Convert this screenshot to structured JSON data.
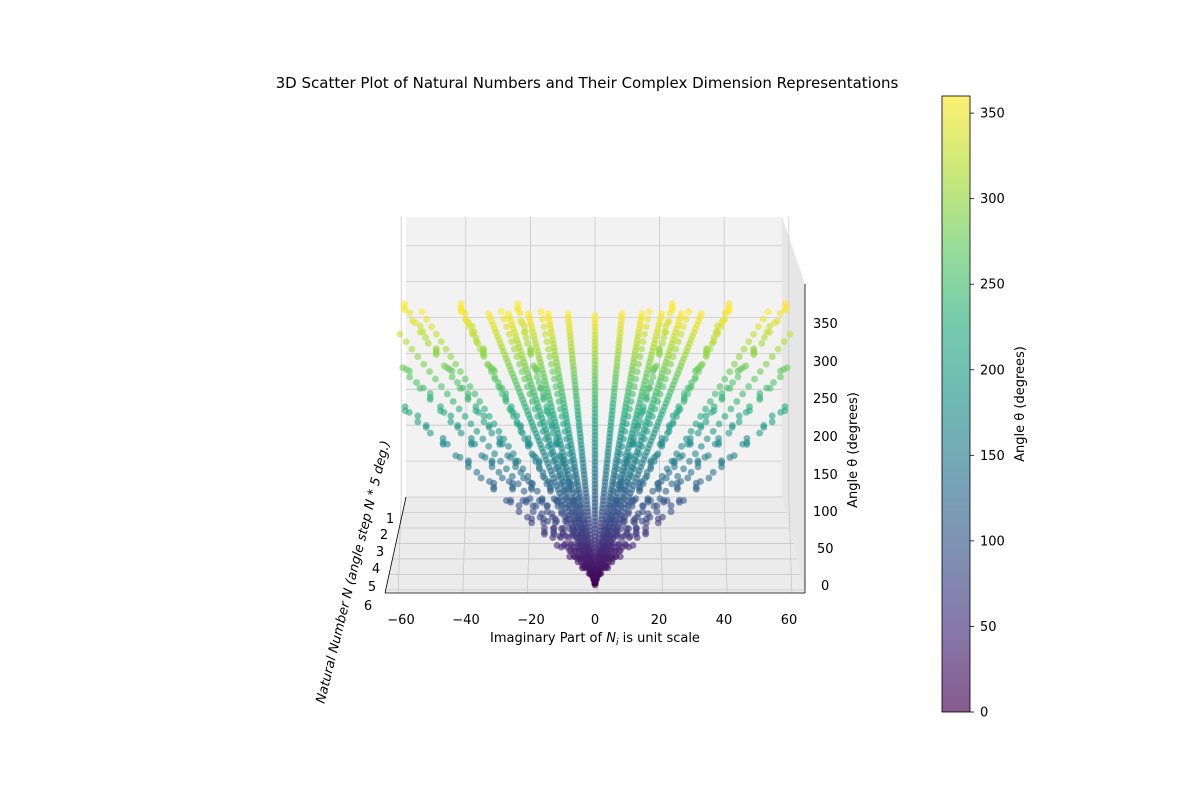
{
  "chart_data": {
    "type": "scatter",
    "projection": "3d",
    "title": "3D Scatter Plot of Natural Numbers and Their Complex Dimension Representations",
    "xlabel": "Imaginary Part of N_i is unit scale",
    "ylabel": "Natural Number N (angle step N * 5 deg.)",
    "zlabel": "Angle θ (degrees)",
    "x_ticks": [
      "−60",
      "−40",
      "−20",
      "0",
      "20",
      "40",
      "60"
    ],
    "y_ticks": [
      "1",
      "2",
      "3",
      "4",
      "5",
      "6"
    ],
    "z_ticks": [
      "0",
      "50",
      "100",
      "150",
      "200",
      "250",
      "300",
      "350"
    ],
    "xlim": [
      -65,
      65
    ],
    "ylim": [
      0,
      6
    ],
    "zlim": [
      0,
      390
    ],
    "angle_step_deg": 5,
    "natural_numbers": [
      1,
      2,
      3,
      4,
      5,
      6
    ],
    "angle_range_deg": [
      0,
      360
    ],
    "colormap": "viridis",
    "marker_alpha": 0.6,
    "grid": true,
    "colorbar": {
      "label": "Angle θ (degrees)",
      "range": [
        0,
        360
      ],
      "ticks": [
        "0",
        "50",
        "100",
        "150",
        "200",
        "250",
        "300",
        "350"
      ]
    }
  }
}
